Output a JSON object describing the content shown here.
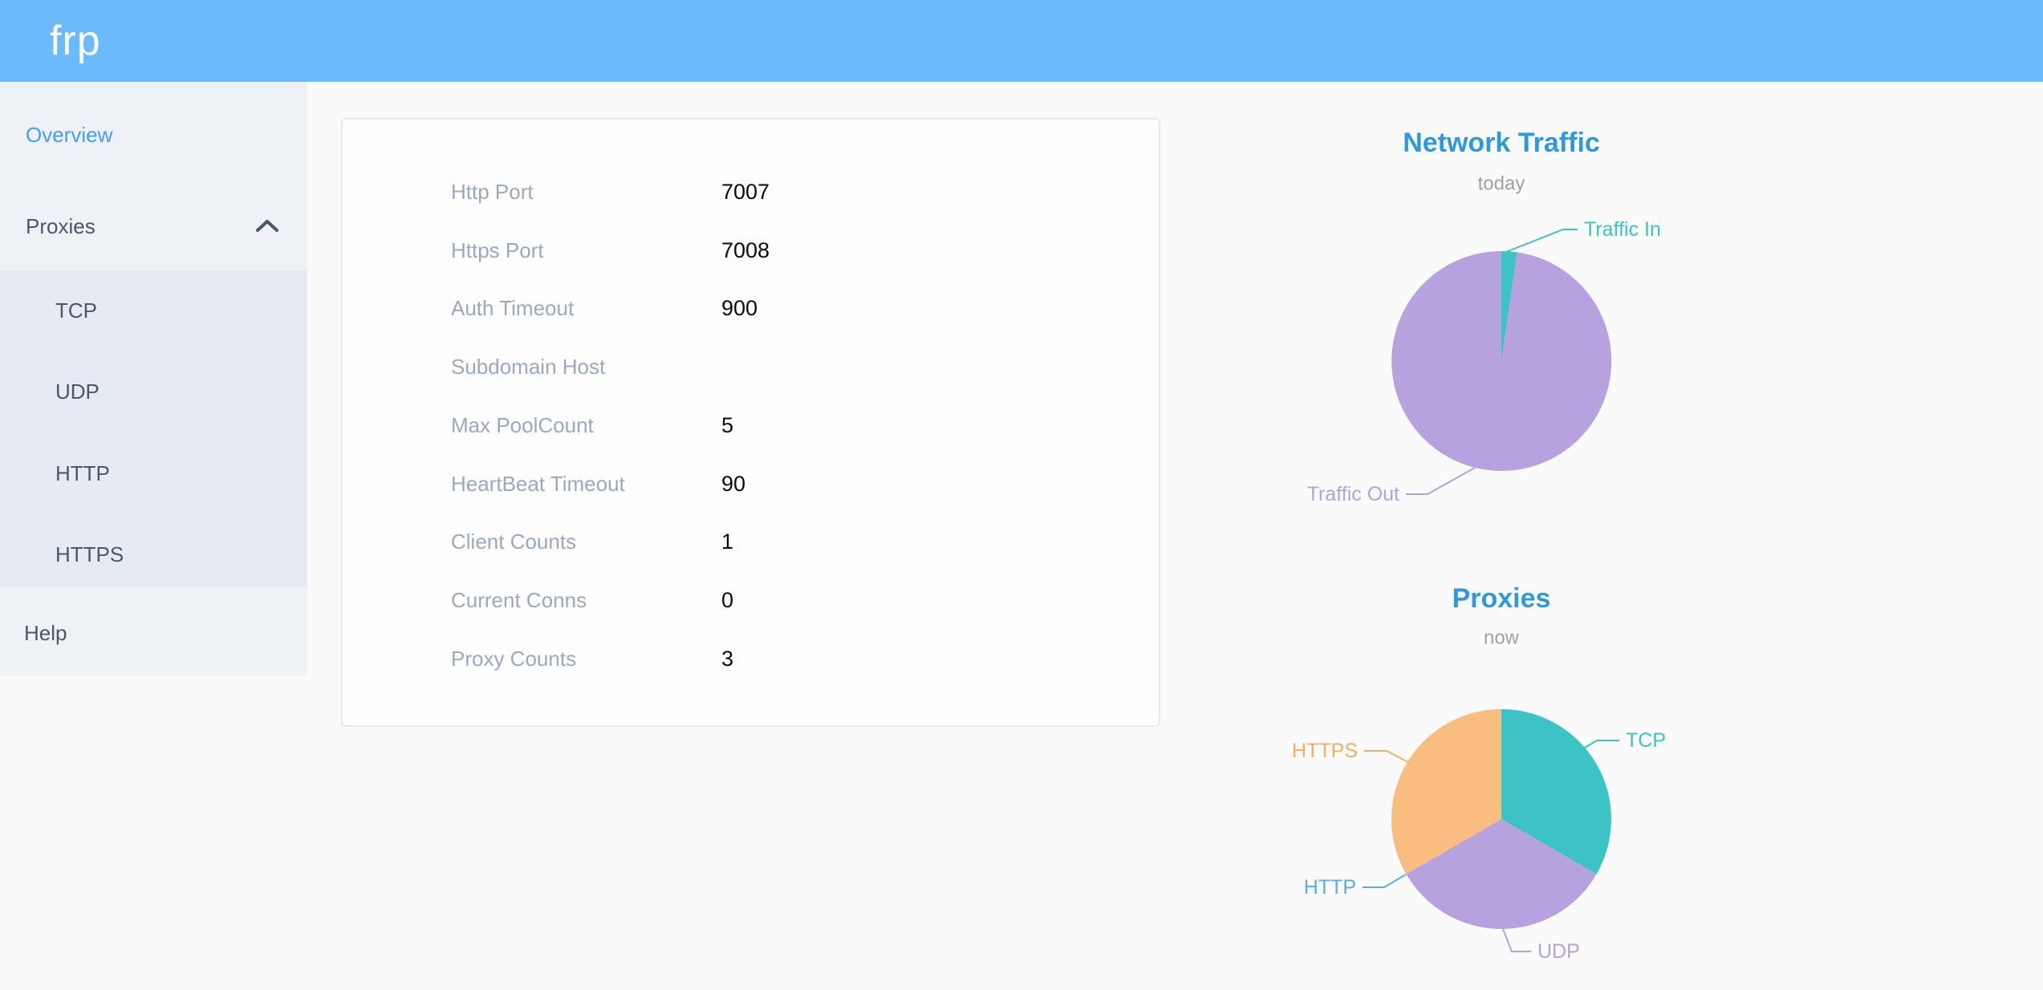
{
  "header": {
    "logo_text": "frp"
  },
  "sidebar": {
    "overview_label": "Overview",
    "proxies_label": "Proxies",
    "submenu": [
      "TCP",
      "UDP",
      "HTTP",
      "HTTPS"
    ],
    "help_label": "Help"
  },
  "server_info": {
    "rows": [
      {
        "label": "Http Port",
        "value": "7007"
      },
      {
        "label": "Https Port",
        "value": "7008"
      },
      {
        "label": "Auth Timeout",
        "value": "900"
      },
      {
        "label": "Subdomain Host",
        "value": ""
      },
      {
        "label": "Max PoolCount",
        "value": "5"
      },
      {
        "label": "HeartBeat Timeout",
        "value": "90"
      },
      {
        "label": "Client Counts",
        "value": "1"
      },
      {
        "label": "Current Conns",
        "value": "0"
      },
      {
        "label": "Proxy Counts",
        "value": "3"
      }
    ]
  },
  "chart_data": [
    {
      "type": "pie",
      "title": "Network Traffic",
      "subtitle": "today",
      "labels": [
        "Traffic In",
        "Traffic Out"
      ],
      "values": [
        2.3,
        97.7
      ],
      "values_note": "estimated share in percent, read from slice angles",
      "colors": [
        "#3cc3c5",
        "#b6a2de"
      ],
      "label_colors": [
        "#3cc3c5",
        "#b3a1dc"
      ],
      "legend_position": "callout-labels"
    },
    {
      "type": "pie",
      "title": "Proxies",
      "subtitle": "now",
      "labels": [
        "TCP",
        "UDP",
        "HTTP",
        "HTTPS"
      ],
      "values": [
        1,
        1,
        0,
        1
      ],
      "values_note": "proxy counts per type; total matches Proxy Counts = 3",
      "colors": [
        "#3cc3c5",
        "#b6a2de",
        "#56aef0",
        "#f9bd80"
      ],
      "label_colors": [
        "#3cc3c5",
        "#b3a1dc",
        "#56aef0",
        "#f2ad63"
      ],
      "legend_position": "callout-labels"
    }
  ],
  "theme": {
    "header_bg": "#6bbbfc",
    "sidebar_bg": "#eef1f6",
    "submenu_bg": "#e6eaf2",
    "menu_text": "#48576a",
    "active_menu_text": "#409eff",
    "chart_title_color": "#2e9add",
    "chart_subtitle_color": "#9ba1a8",
    "card_label_color": "#9aa9bf",
    "card_value_color": "#0b0b0c"
  }
}
